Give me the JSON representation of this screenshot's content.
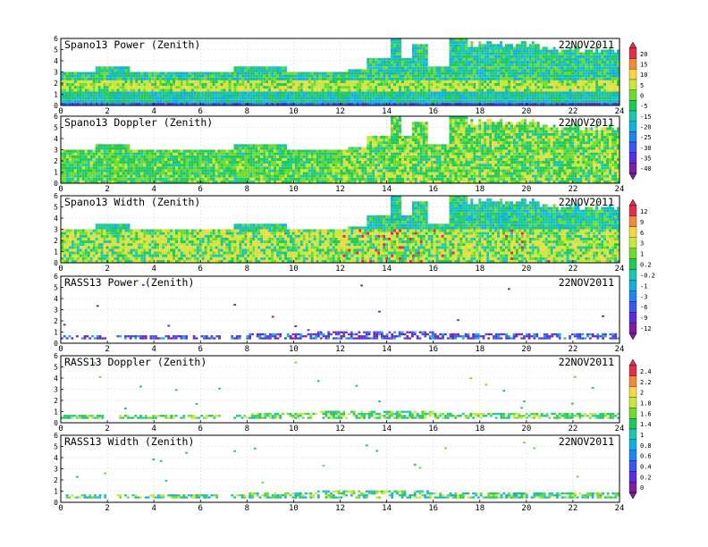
{
  "chart_data": [
    {
      "type": "heatmap",
      "title": "Spano13 Power (Zenith)",
      "date": "22NOV2011",
      "xlim": [
        0,
        24
      ],
      "ylim": [
        0,
        6
      ],
      "x_ticks": [
        "0",
        "2",
        "4",
        "6",
        "8",
        "10",
        "12",
        "14",
        "16",
        "18",
        "20",
        "22",
        "24"
      ],
      "y_ticks": [
        "0",
        "1",
        "2",
        "3",
        "4",
        "5",
        "6"
      ],
      "colorbar": [
        "20",
        "15",
        "10",
        "5",
        "0",
        "-5",
        "-15",
        "-20",
        "-25",
        "-30",
        "-35",
        "-40"
      ],
      "scale": "power",
      "grid": true
    },
    {
      "type": "heatmap",
      "title": "Spano13 Doppler (Zenith)",
      "date": "22NOV2011",
      "xlim": [
        0,
        24
      ],
      "ylim": [
        0,
        6
      ],
      "x_ticks": [
        "0",
        "2",
        "4",
        "6",
        "8",
        "10",
        "12",
        "14",
        "16",
        "18",
        "20",
        "22",
        "24"
      ],
      "y_ticks": [
        "0",
        "1",
        "2",
        "3",
        "4",
        "5",
        "6"
      ],
      "scale": "doppler",
      "grid": true
    },
    {
      "type": "heatmap",
      "title": "Spano13 Width (Zenith)",
      "date": "22NOV2011",
      "xlim": [
        0,
        24
      ],
      "ylim": [
        0,
        6
      ],
      "x_ticks": [
        "0",
        "2",
        "4",
        "6",
        "8",
        "10",
        "12",
        "14",
        "16",
        "18",
        "20",
        "22",
        "24"
      ],
      "y_ticks": [
        "0",
        "1",
        "2",
        "3",
        "4",
        "5",
        "6"
      ],
      "colorbar": [
        "12",
        "9",
        "6",
        "3",
        "1",
        "0.2",
        "-0.2",
        "-1",
        "-3",
        "-6",
        "-9",
        "-12"
      ],
      "scale": "width",
      "grid": true
    },
    {
      "type": "heatmap",
      "title": "RASS13 Power (Zenith)",
      "date": "22NOV2011",
      "xlim": [
        0,
        24
      ],
      "ylim": [
        0,
        6
      ],
      "x_ticks": [
        "0",
        "2",
        "4",
        "6",
        "8",
        "10",
        "12",
        "14",
        "16",
        "18",
        "20",
        "22",
        "24"
      ],
      "y_ticks": [
        "0",
        "1",
        "2",
        "3",
        "4",
        "5",
        "6"
      ],
      "scale": "rass_power",
      "grid": true
    },
    {
      "type": "heatmap",
      "title": "RASS13 Doppler (Zenith)",
      "date": "22NOV2011",
      "xlim": [
        0,
        24
      ],
      "ylim": [
        0,
        6
      ],
      "x_ticks": [
        "0",
        "2",
        "4",
        "6",
        "8",
        "10",
        "12",
        "14",
        "16",
        "18",
        "20",
        "22",
        "24"
      ],
      "y_ticks": [
        "0",
        "1",
        "2",
        "3",
        "4",
        "5",
        "6"
      ],
      "colorbar": [
        "2.4",
        "2.2",
        "2",
        "1.8",
        "1.6",
        "1.4",
        "1",
        "0.8",
        "0.6",
        "0.4",
        "0.2",
        "0"
      ],
      "scale": "rass_doppler",
      "grid": true
    },
    {
      "type": "heatmap",
      "title": "RASS13 Width (Zenith)",
      "date": "22NOV2011",
      "xlim": [
        0,
        24
      ],
      "ylim": [
        0,
        6
      ],
      "x_ticks": [
        "0",
        "2",
        "4",
        "6",
        "8",
        "10",
        "12",
        "14",
        "16",
        "18",
        "20",
        "22",
        "24"
      ],
      "y_ticks": [
        "0",
        "1",
        "2",
        "3",
        "4",
        "5",
        "6"
      ],
      "scale": "rass_width",
      "grid": true
    }
  ],
  "colors": {
    "palette": [
      "#7a1fa2",
      "#5a2ee0",
      "#3b55f0",
      "#1f86ef",
      "#12b0e0",
      "#18c9b0",
      "#22c955",
      "#6fdc2d",
      "#c8e83c",
      "#f5d84a",
      "#f08a3c",
      "#e0304a"
    ],
    "grid": "#bdbdbd",
    "axis": "#000000"
  }
}
